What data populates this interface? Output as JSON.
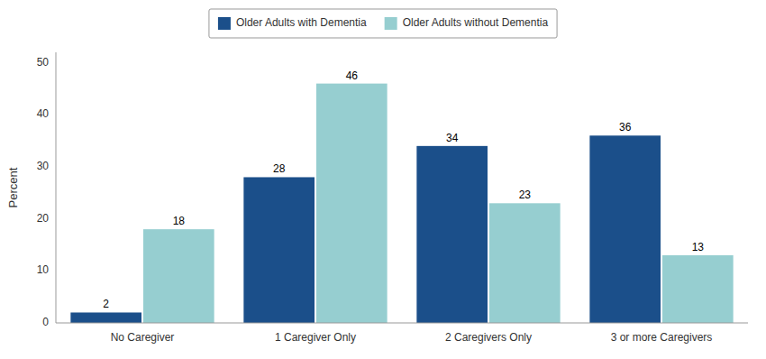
{
  "chart_data": {
    "type": "bar",
    "categories": [
      "No Caregiver",
      "1 Caregiver Only",
      "2 Caregivers Only",
      "3 or more Caregivers"
    ],
    "series": [
      {
        "name": "Older Adults with Dementia",
        "color": "#1B4F8A",
        "values": [
          2,
          28,
          34,
          36
        ]
      },
      {
        "name": "Older Adults without Dementia",
        "color": "#96CED0",
        "values": [
          18,
          46,
          23,
          13
        ]
      }
    ],
    "y_label": "Percent",
    "ylim": [
      0,
      52
    ],
    "yticks": [
      0,
      10,
      20,
      30,
      40,
      50
    ],
    "grid": false,
    "legend": "top",
    "data_labels": true
  }
}
